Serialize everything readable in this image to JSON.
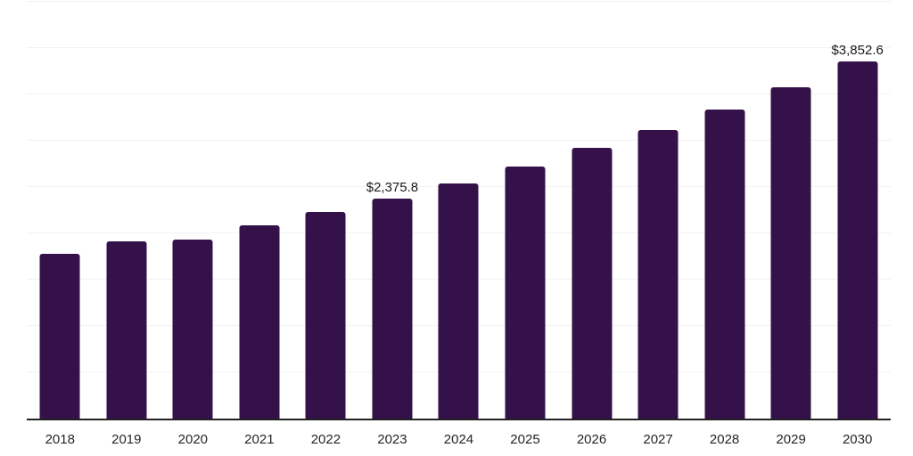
{
  "chart_data": {
    "type": "bar",
    "title": "",
    "xlabel": "",
    "ylabel": "",
    "categories": [
      "2018",
      "2019",
      "2020",
      "2021",
      "2022",
      "2023",
      "2024",
      "2025",
      "2026",
      "2027",
      "2028",
      "2029",
      "2030"
    ],
    "values": [
      1780,
      1911,
      1937,
      2084,
      2228,
      2375.8,
      2539,
      2718,
      2924,
      3119,
      3333,
      3577,
      3852.6
    ],
    "data_labels": [
      {
        "category": "2023",
        "text": "$2,375.8"
      },
      {
        "category": "2030",
        "text": "$3,852.6"
      }
    ],
    "ylim": [
      0,
      4500
    ],
    "grid_step": 500,
    "grid": "horizontal-only",
    "y_tick_labels_visible": false,
    "legend_position": "none",
    "colors": {
      "bar": "#351149",
      "grid": "#f2f2f2",
      "axis": "#222222",
      "tick_text": "#262626",
      "data_label_text": "#1a1a1a"
    }
  }
}
